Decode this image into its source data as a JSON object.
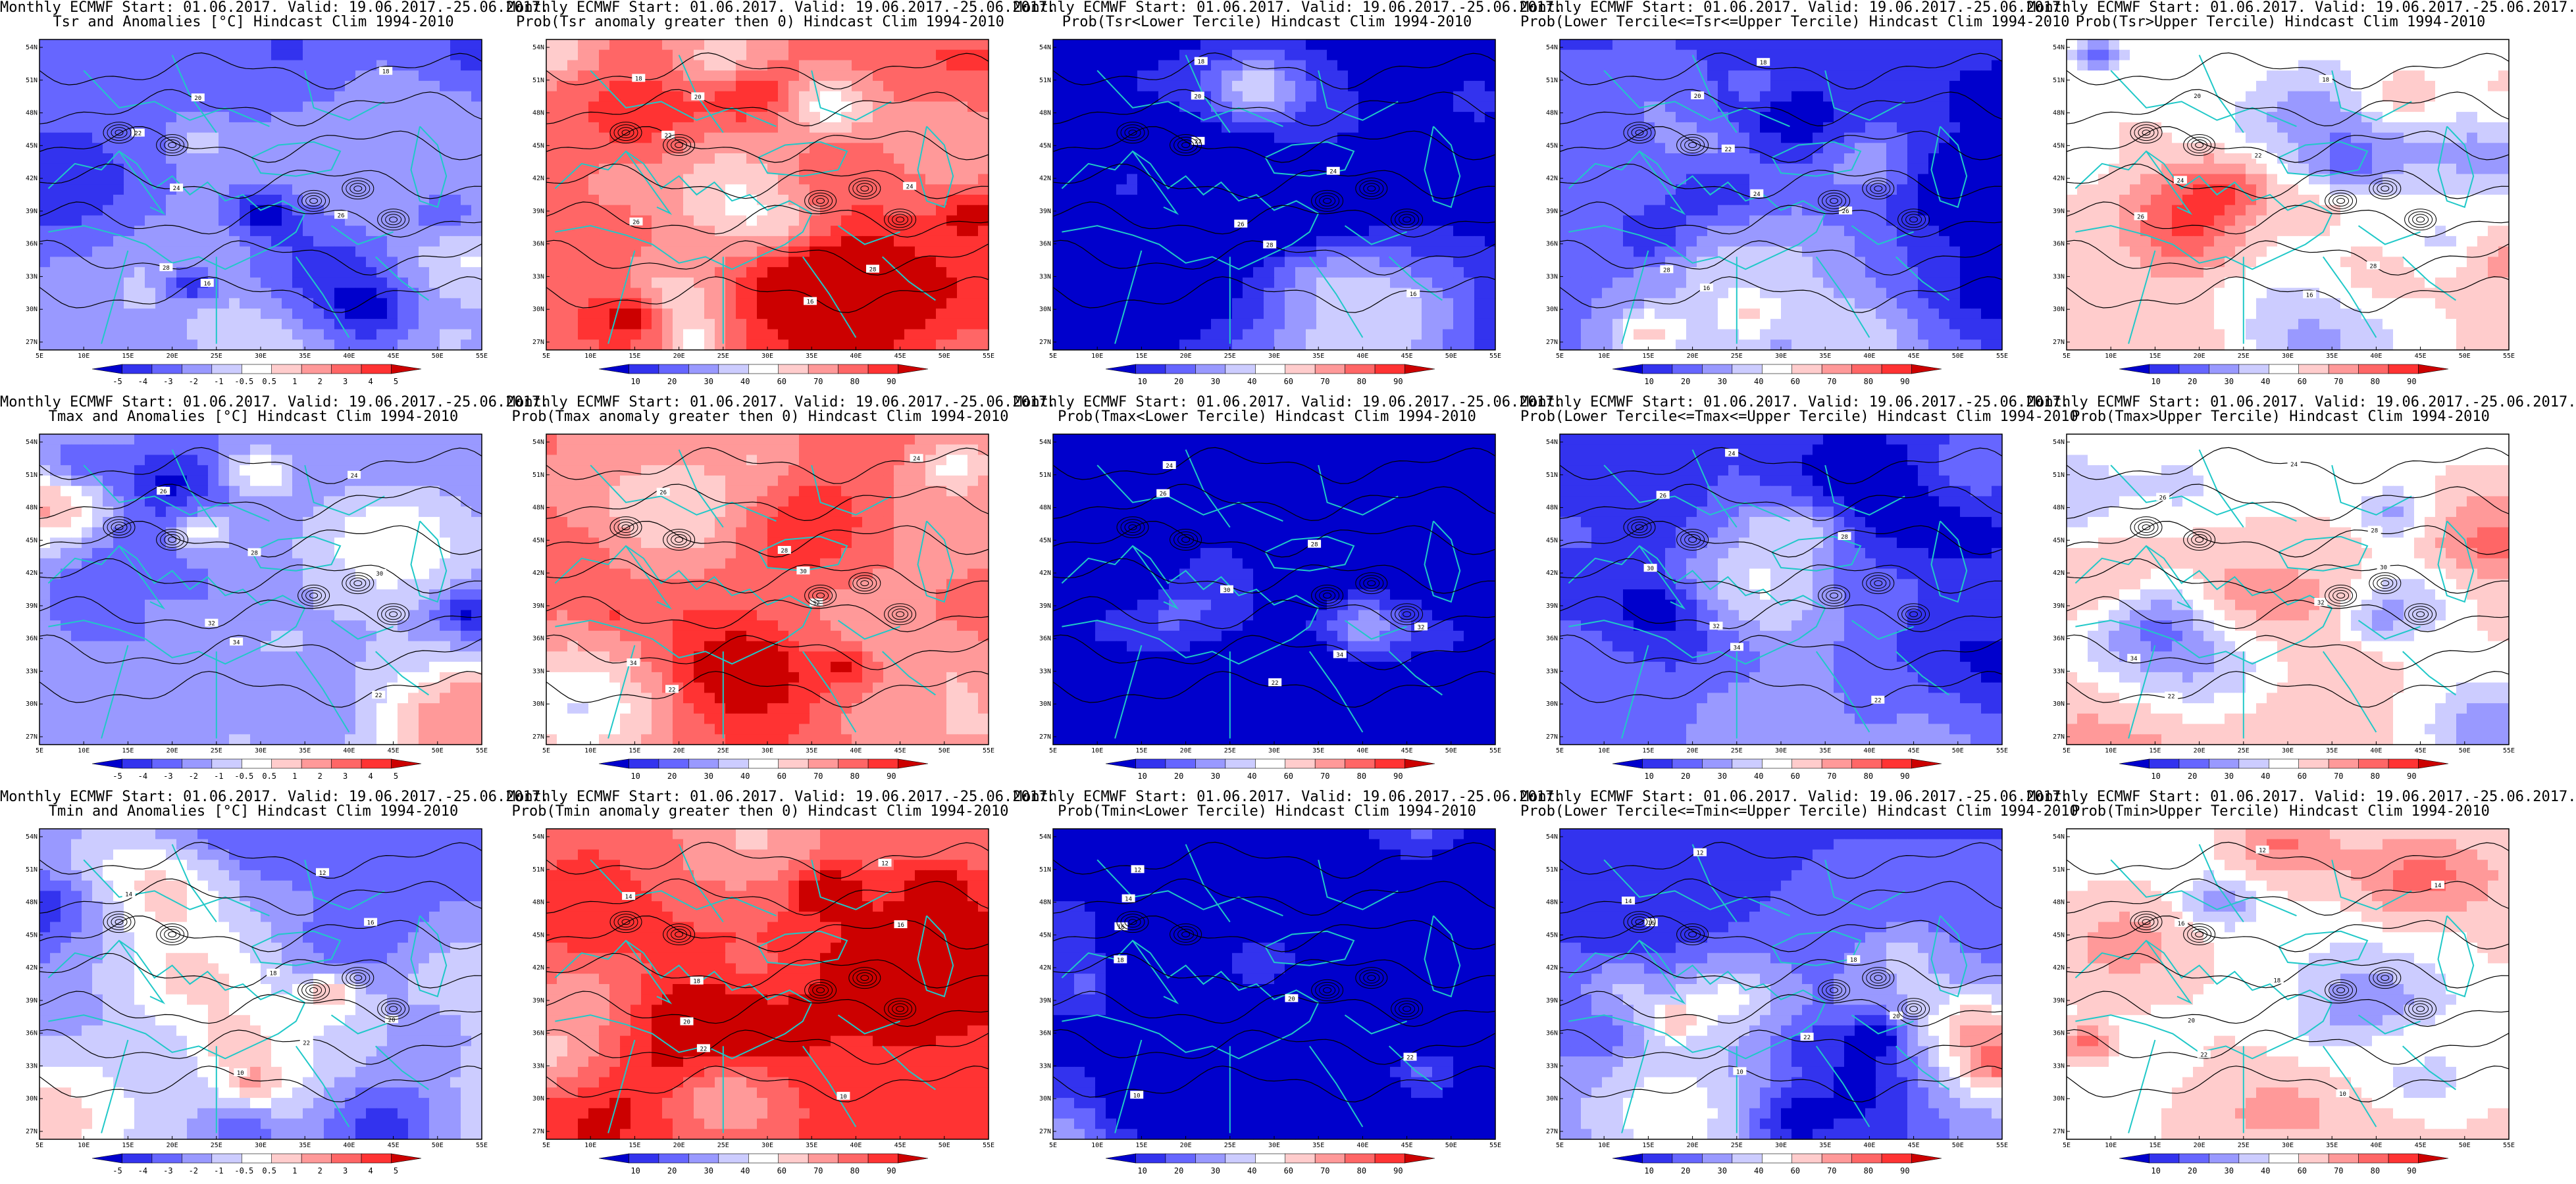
{
  "figure": {
    "lat_ticks": [
      "54N",
      "51N",
      "48N",
      "45N",
      "42N",
      "39N",
      "36N",
      "33N",
      "30N",
      "27N"
    ],
    "lon_ticks": [
      "5E",
      "10E",
      "15E",
      "20E",
      "25E",
      "30E",
      "35E",
      "40E",
      "45E",
      "50E",
      "55E"
    ],
    "colors": {
      "coast": "#20c8c8",
      "contour": "#000000",
      "anom": [
        "#0000cc",
        "#3333ee",
        "#6666ff",
        "#9999ff",
        "#ccccff",
        "#ffffff",
        "#ffcccc",
        "#ff9999",
        "#ff6666",
        "#ff3333",
        "#cc0000"
      ],
      "prob": [
        "#0000cc",
        "#3333ee",
        "#6666ff",
        "#9999ff",
        "#ccccff",
        "#ffffff",
        "#ffcccc",
        "#ff9999",
        "#ff6666",
        "#ff3333",
        "#cc0000"
      ]
    },
    "scales": {
      "anom": [
        "-5",
        "-4",
        "-3",
        "-2",
        "-1",
        "-0.5",
        "0.5",
        "1",
        "2",
        "3",
        "4",
        "5"
      ],
      "prob": [
        "10",
        "20",
        "30",
        "40",
        "60",
        "70",
        "80",
        "90"
      ]
    },
    "panels": [
      {
        "title1": "Monthly ECMWF Start: 01.06.2017. Valid: 19.06.2017.-25.06.2017.",
        "title2": "Tsr and Anomalies [°C] Hindcast Clim 1994-2010",
        "scale": "anom",
        "field_level": 0.3,
        "contour_labels": [
          "18",
          "20",
          "22",
          "24",
          "26",
          "28",
          "16"
        ]
      },
      {
        "title1": "Monthly ECMWF Start: 01.06.2017. Valid: 19.06.2017.-25.06.2017.",
        "title2": "Prob(Tsr anomaly greater then 0) Hindcast Clim 1994-2010",
        "scale": "prob",
        "field_level": 0.78,
        "contour_labels": [
          "18",
          "20",
          "22",
          "24",
          "26",
          "28",
          "16"
        ]
      },
      {
        "title1": "Monthly ECMWF Start: 01.06.2017. Valid: 19.06.2017.-25.06.2017.",
        "title2": "Prob(Tsr<Lower Tercile) Hindcast Clim 1994-2010",
        "scale": "prob",
        "field_level": 0.05,
        "contour_labels": [
          "18",
          "20",
          "22",
          "24",
          "26",
          "28",
          "16"
        ]
      },
      {
        "title1": "Monthly ECMWF Start: 01.06.2017. Valid: 19.06.2017.-25.06.2017.",
        "title2": "Prob(Lower Tercile<=Tsr<=Upper Tercile) Hindcast Clim 1994-2010",
        "scale": "prob",
        "field_level": 0.22,
        "contour_labels": [
          "18",
          "20",
          "22",
          "24",
          "26",
          "28",
          "16"
        ]
      },
      {
        "title1": "Monthly ECMWF Start: 01.06.2017. Valid: 19.06.2017.-25.06.2017.",
        "title2": "Prob(Tsr>Upper Tercile) Hindcast Clim 1994-2010",
        "scale": "prob",
        "field_level": 0.55,
        "contour_labels": [
          "18",
          "20",
          "22",
          "24",
          "26",
          "28",
          "16"
        ]
      },
      {
        "title1": "Monthly ECMWF Start: 01.06.2017. Valid: 19.06.2017.-25.06.2017.",
        "title2": "Tmax and Anomalies [°C] Hindcast Clim 1994-2010",
        "scale": "anom",
        "field_level": 0.32,
        "contour_labels": [
          "24",
          "26",
          "28",
          "30",
          "32",
          "34",
          "22"
        ]
      },
      {
        "title1": "Monthly ECMWF Start: 01.06.2017. Valid: 19.06.2017.-25.06.2017.",
        "title2": "Prob(Tmax anomaly greater then 0) Hindcast Clim 1994-2010",
        "scale": "prob",
        "field_level": 0.78,
        "contour_labels": [
          "24",
          "26",
          "28",
          "30",
          "32",
          "34",
          "22"
        ]
      },
      {
        "title1": "Monthly ECMWF Start: 01.06.2017. Valid: 19.06.2017.-25.06.2017.",
        "title2": "Prob(Tmax<Lower Tercile) Hindcast Clim 1994-2010",
        "scale": "prob",
        "field_level": 0.05,
        "contour_labels": [
          "24",
          "26",
          "28",
          "30",
          "32",
          "34",
          "22"
        ]
      },
      {
        "title1": "Monthly ECMWF Start: 01.06.2017. Valid: 19.06.2017.-25.06.2017.",
        "title2": "Prob(Lower Tercile<=Tmax<=Upper Tercile) Hindcast Clim 1994-2010",
        "scale": "prob",
        "field_level": 0.22,
        "contour_labels": [
          "24",
          "26",
          "28",
          "30",
          "32",
          "34",
          "22"
        ]
      },
      {
        "title1": "Monthly ECMWF Start: 01.06.2017. Valid: 19.06.2017.-25.06.2017.",
        "title2": "Prob(Tmax>Upper Tercile) Hindcast Clim 1994-2010",
        "scale": "prob",
        "field_level": 0.55,
        "contour_labels": [
          "24",
          "26",
          "28",
          "30",
          "32",
          "34",
          "22"
        ]
      },
      {
        "title1": "Monthly ECMWF Start: 01.06.2017. Valid: 19.06.2017.-25.06.2017.",
        "title2": "Tmin and Anomalies [°C] Hindcast Clim 1994-2010",
        "scale": "anom",
        "field_level": 0.28,
        "contour_labels": [
          "12",
          "14",
          "16",
          "18",
          "20",
          "22",
          "10"
        ]
      },
      {
        "title1": "Monthly ECMWF Start: 01.06.2017. Valid: 19.06.2017.-25.06.2017.",
        "title2": "Prob(Tmin anomaly greater then 0) Hindcast Clim 1994-2010",
        "scale": "prob",
        "field_level": 0.8,
        "contour_labels": [
          "12",
          "14",
          "16",
          "18",
          "20",
          "22",
          "10"
        ]
      },
      {
        "title1": "Monthly ECMWF Start: 01.06.2017. Valid: 19.06.2017.-25.06.2017.",
        "title2": "Prob(Tmin<Lower Tercile) Hindcast Clim 1994-2010",
        "scale": "prob",
        "field_level": 0.05,
        "contour_labels": [
          "12",
          "14",
          "16",
          "18",
          "20",
          "22",
          "10"
        ]
      },
      {
        "title1": "Monthly ECMWF Start: 01.06.2017. Valid: 19.06.2017.-25.06.2017.",
        "title2": "Prob(Lower Tercile<=Tmin<=Upper Tercile) Hindcast Clim 1994-2010",
        "scale": "prob",
        "field_level": 0.22,
        "contour_labels": [
          "12",
          "14",
          "16",
          "18",
          "20",
          "22",
          "10"
        ]
      },
      {
        "title1": "Monthly ECMWF Start: 01.06.2017. Valid: 19.06.2017.-25.06.2017.",
        "title2": "Prob(Tmin>Upper Tercile) Hindcast Clim 1994-2010",
        "scale": "prob",
        "field_level": 0.52,
        "contour_labels": [
          "12",
          "14",
          "16",
          "18",
          "20",
          "22",
          "10"
        ]
      }
    ]
  }
}
